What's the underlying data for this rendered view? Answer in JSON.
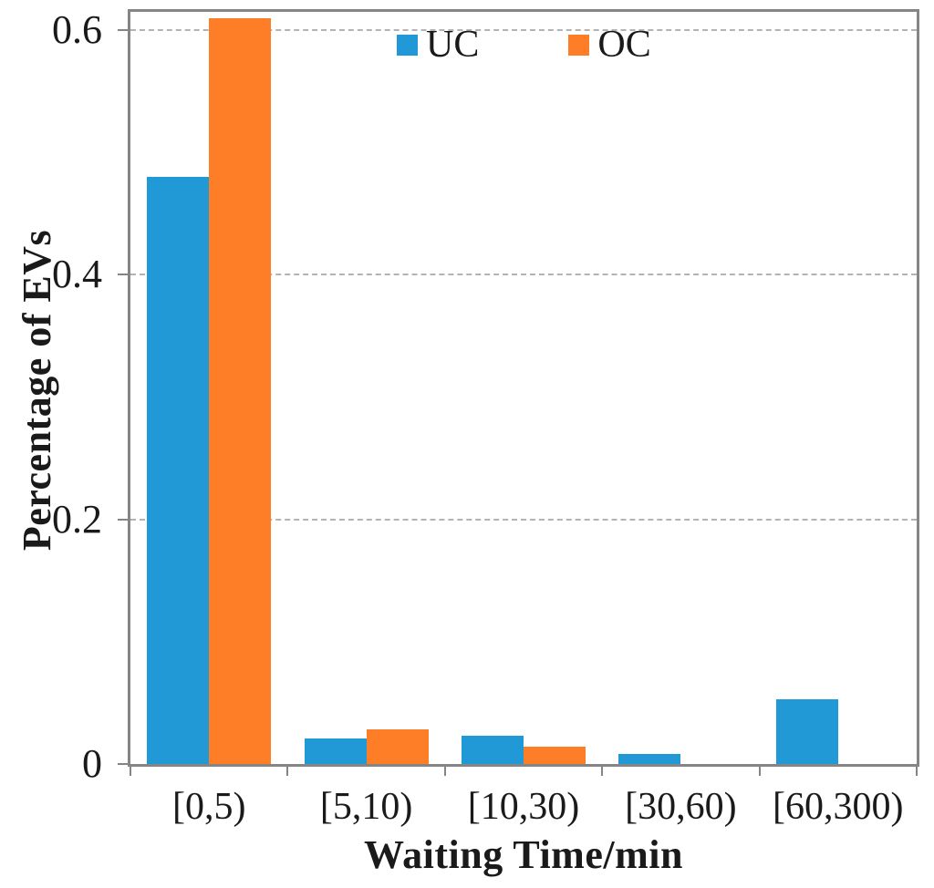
{
  "chart_data": {
    "type": "bar",
    "categories": [
      "[0,5)",
      "[5,10)",
      "[10,30)",
      "[30,60)",
      "[60,300)"
    ],
    "series": [
      {
        "name": "UC",
        "color": "#2199D6",
        "values": [
          0.48,
          0.021,
          0.023,
          0.008,
          0.053
        ]
      },
      {
        "name": "OC",
        "color": "#FD7E27",
        "values": [
          0.61,
          0.028,
          0.014,
          0,
          0
        ]
      }
    ],
    "title": "",
    "xlabel": "Waiting Time/min",
    "ylabel": "Percentage of EVs",
    "ylim": [
      0,
      0.615
    ],
    "yticks": [
      0,
      0.2,
      0.4,
      0.6
    ],
    "ytick_labels": [
      "0",
      "0.2",
      "0.4",
      "0.6"
    ],
    "grid": "horizontal-dashed",
    "legend_position": "top-center-inside"
  },
  "colors": {
    "axis": "#858585",
    "gridline": "#b3b3b3",
    "text": "#1a1a1a",
    "background": "#ffffff"
  }
}
